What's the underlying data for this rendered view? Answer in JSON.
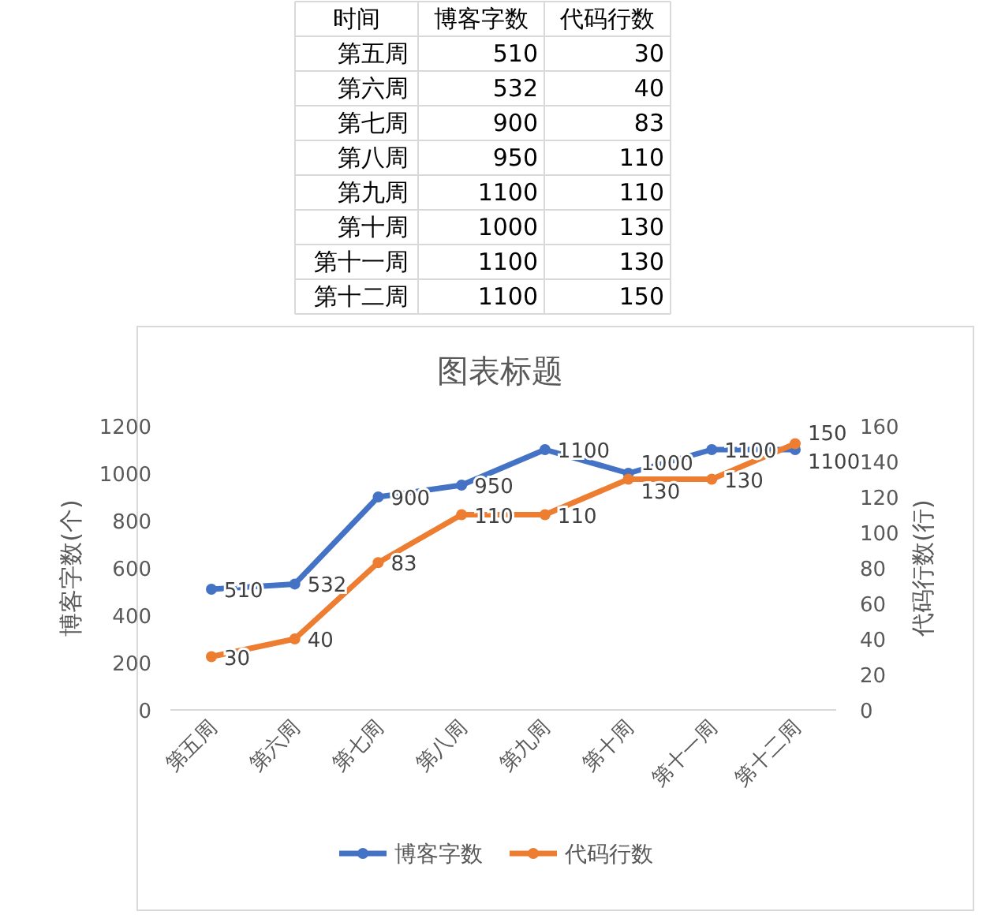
{
  "chart_data": [
    {
      "type": "other",
      "annotations": [
        "时间"
      ],
      "data_labels": true,
      "categories": [
        "第五周",
        "第六周",
        "第七周",
        "第八周",
        "第九周",
        "第十周",
        "第十一周",
        "第十二周"
      ],
      "series": [
        {
          "name": "博客字数",
          "values": [
            510,
            532,
            900,
            950,
            1100,
            1000,
            1100,
            1100
          ]
        },
        {
          "name": "代码行数",
          "values": [
            30,
            40,
            83,
            110,
            110,
            130,
            130,
            150
          ]
        }
      ]
    },
    {
      "type": "line",
      "title": "图表标题",
      "ylabel": "博客字数(个)",
      "y2label": "代码行数(行)",
      "categories": [
        "第五周",
        "第六周",
        "第七周",
        "第八周",
        "第九周",
        "第十周",
        "第十一周",
        "第十二周"
      ],
      "series": [
        {
          "name": "博客字数",
          "color": "#4472c4",
          "values": [
            510,
            532,
            900,
            950,
            1100,
            1000,
            1100,
            1100
          ]
        },
        {
          "name": "代码行数",
          "color": "#ed7d31",
          "values": [
            30,
            40,
            83,
            110,
            110,
            130,
            130,
            150
          ],
          "axis": "y2"
        }
      ],
      "ylim": [
        0,
        1200
      ],
      "yticks": [
        0,
        200,
        400,
        600,
        800,
        1000,
        1200
      ],
      "y2lim": [
        0,
        160
      ],
      "y2ticks": [
        0,
        20,
        40,
        60,
        80,
        100,
        120,
        140,
        160
      ],
      "data_labels": true,
      "legend": "bottom",
      "marker": "circle",
      "line_style": "solid",
      "grid": false
    }
  ]
}
